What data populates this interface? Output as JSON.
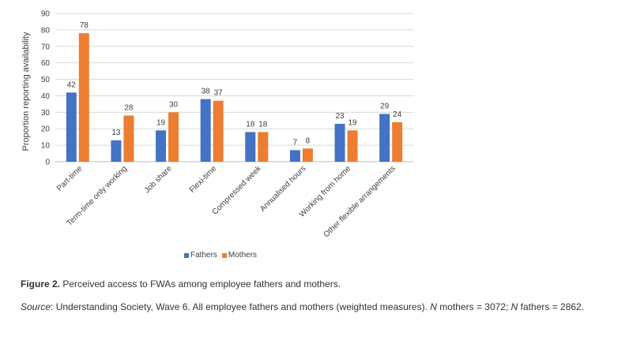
{
  "chart_data": {
    "type": "bar",
    "categories": [
      "Part-time",
      "Term-time only working",
      "Job share",
      "Flexi-time",
      "Compressed week",
      "Annualised hours",
      "Working from home",
      "Other flexible arrangements"
    ],
    "series": [
      {
        "name": "Fathers",
        "values": [
          42,
          13,
          19,
          38,
          18,
          7,
          23,
          29
        ],
        "color": "#4472C4"
      },
      {
        "name": "Mothers",
        "values": [
          78,
          28,
          30,
          37,
          18,
          8,
          19,
          24
        ],
        "color": "#ED7D31"
      }
    ],
    "ylabel": "Proportion reporting availability",
    "ylim": [
      0,
      90
    ],
    "yticks": [
      0,
      10,
      20,
      30,
      40,
      50,
      60,
      70,
      80,
      90
    ],
    "grid": true,
    "legend": "bottom"
  },
  "caption": {
    "label": "Figure 2.",
    "text": " Perceived access to FWAs among employee fathers and mothers."
  },
  "source": {
    "label": "Source",
    "part1": ": Understanding Society, Wave 6. All employee fathers and mothers (weighted measures). ",
    "n1": "N",
    "part2": " mothers = 3072; ",
    "n2": "N",
    "part3": " fathers = 2862."
  }
}
